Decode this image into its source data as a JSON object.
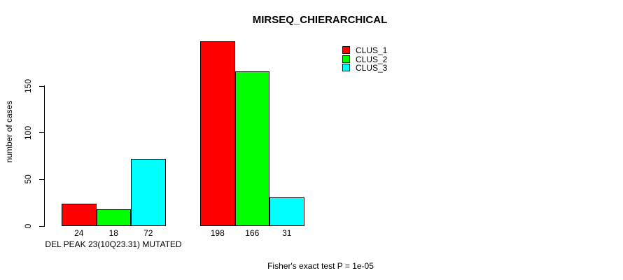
{
  "chart_data": {
    "type": "bar",
    "title": "MIRSEQ_CHIERARCHICAL",
    "ylabel": "number of cases",
    "caption": "Fisher's exact test P = 1e-05",
    "categories": [
      "DEL PEAK 23(10Q23.31) MUTATED",
      ""
    ],
    "series": [
      {
        "name": "CLUS_1",
        "color": "#ff0000",
        "values": [
          24,
          198
        ]
      },
      {
        "name": "CLUS_2",
        "color": "#00ff00",
        "values": [
          18,
          166
        ]
      },
      {
        "name": "CLUS_3",
        "color": "#00ffff",
        "values": [
          72,
          31
        ]
      }
    ],
    "y_ticks": [
      0,
      50,
      100,
      150
    ],
    "ylim": [
      0,
      200
    ],
    "grid": false,
    "show_value_labels": true,
    "legend_position": "top-right",
    "bar_border_color": "#000000",
    "background": "#ffffff",
    "text_color": "#000000"
  }
}
